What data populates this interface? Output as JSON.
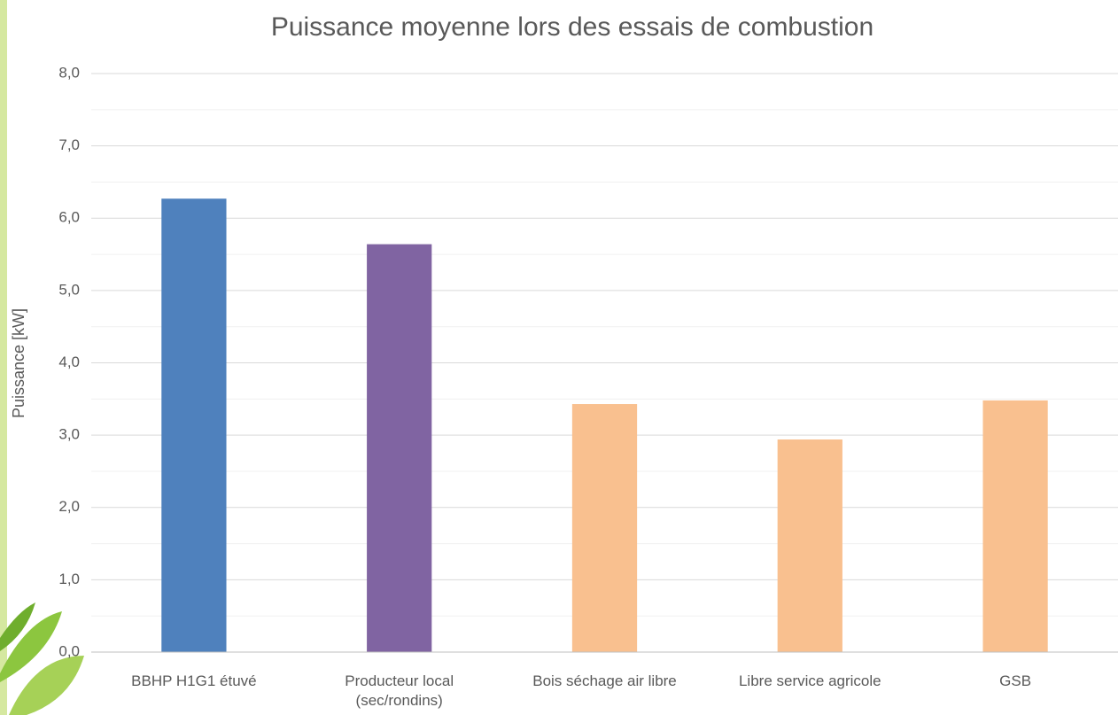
{
  "chart_data": {
    "type": "bar",
    "title": "Puissance moyenne lors des essais de combustion",
    "y_label": "Puissance [kW]",
    "categories": [
      "BBHP H1G1 étuvé",
      "Producteur local\n(sec/rondins)",
      "Bois séchage air libre",
      "Libre service agricole",
      "GSB"
    ],
    "values": [
      6.27,
      5.64,
      3.43,
      2.94,
      3.48
    ],
    "colors": [
      "#4f81bd",
      "#8064a2",
      "#f9c08f",
      "#f9c08f",
      "#f9c08f"
    ],
    "ylim": [
      0,
      8
    ],
    "yticks": [
      {
        "value": 0,
        "label": "0,0"
      },
      {
        "value": 1,
        "label": "1,0"
      },
      {
        "value": 2,
        "label": "2,0"
      },
      {
        "value": 3,
        "label": "3,0"
      },
      {
        "value": 4,
        "label": "4,0"
      },
      {
        "value": 5,
        "label": "5,0"
      },
      {
        "value": 6,
        "label": "6,0"
      },
      {
        "value": 7,
        "label": "7,0"
      },
      {
        "value": 8,
        "label": "8,0"
      }
    ],
    "minor_yticks": [
      0.5,
      1.5,
      2.5,
      3.5,
      4.5,
      5.5,
      6.5,
      7.5
    ],
    "grid": true
  }
}
